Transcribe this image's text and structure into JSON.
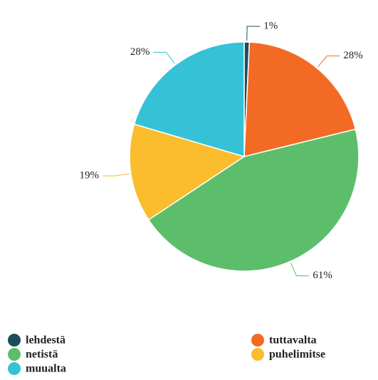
{
  "chart_data": {
    "type": "pie",
    "categories": [
      "lehdestä",
      "tuttavalta",
      "netistä",
      "puhelimitse",
      "muualta"
    ],
    "values": [
      1,
      28,
      61,
      19,
      28
    ],
    "value_labels": [
      "1%",
      "28%",
      "61%",
      "19%",
      "28%"
    ],
    "colors": [
      "#1d4e5e",
      "#f26a24",
      "#5cbd6b",
      "#fbbd2e",
      "#35c2d7"
    ],
    "legend": "bottom"
  }
}
